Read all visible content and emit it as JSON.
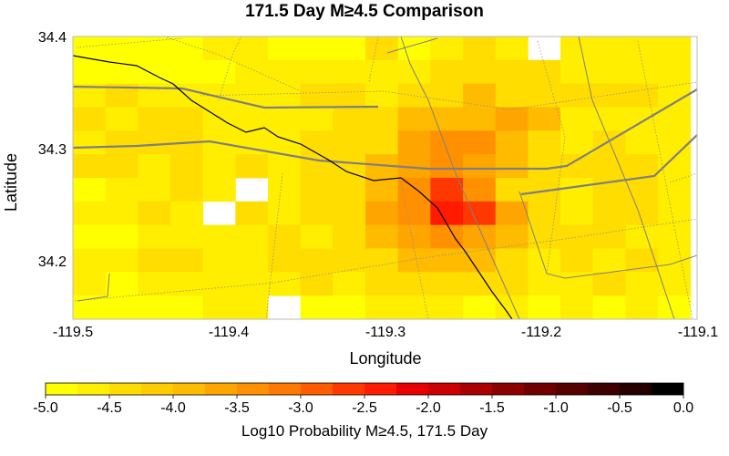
{
  "title": "171.5 Day M≥4.5 Comparison",
  "map": {
    "x_label": "Longitude",
    "y_label": "Latitude",
    "lon_range": [
      -119.5,
      -119.1
    ],
    "lat_range": [
      34.145,
      34.4
    ],
    "x_ticks": [
      "-119.5",
      "-119.4",
      "-119.3",
      "-119.2",
      "-119.1"
    ],
    "y_ticks": [
      "34.4",
      "34.3",
      "34.2"
    ],
    "grid_start": [
      -119.5,
      34.145
    ],
    "grid_step_deg": [
      0.02083,
      0.02125
    ],
    "grid_size": [
      19,
      12
    ],
    "cell_values_log10": [
      [
        -5.0,
        -4.9,
        -4.9,
        -4.9,
        -4.7,
        -4.7,
        -5.0,
        -4.9,
        -4.9,
        -4.4,
        -4.9,
        -4.7,
        -4.4,
        -4.6,
        null,
        -4.7,
        -4.6,
        -4.6,
        -4.6
      ],
      [
        -4.9,
        -4.9,
        -4.9,
        -5.0,
        -4.9,
        -4.6,
        -4.7,
        -4.7,
        -4.7,
        -4.6,
        -4.7,
        -4.4,
        -4.3,
        -4.4,
        -4.3,
        -4.7,
        -4.6,
        -4.7,
        -4.6
      ],
      [
        -4.6,
        -4.4,
        -4.7,
        -4.6,
        -4.7,
        -4.6,
        -4.6,
        -4.4,
        -4.4,
        -4.6,
        -4.3,
        -4.4,
        -4.0,
        -4.3,
        -4.4,
        -4.4,
        -4.3,
        -4.4,
        -4.7
      ],
      [
        -4.4,
        -4.7,
        -4.4,
        -4.4,
        -4.6,
        -4.6,
        -4.6,
        -4.6,
        -4.3,
        -4.4,
        -4.0,
        -4.0,
        -4.0,
        -3.7,
        -4.0,
        -4.6,
        -4.7,
        -4.6,
        -4.7
      ],
      [
        -4.6,
        -4.4,
        -4.3,
        -4.4,
        -4.6,
        -4.6,
        -4.7,
        -4.4,
        -4.3,
        -4.3,
        -3.7,
        -3.5,
        -3.5,
        -4.0,
        -4.3,
        -4.6,
        -4.4,
        -4.6,
        -4.6
      ],
      [
        -4.4,
        -4.4,
        -4.6,
        -4.4,
        -4.7,
        -4.3,
        -4.6,
        -4.3,
        -4.3,
        -4.0,
        -3.7,
        -3.5,
        -3.7,
        -4.0,
        -4.3,
        -4.4,
        -4.3,
        -4.4,
        -4.6
      ],
      [
        -4.9,
        -4.6,
        -4.6,
        -4.4,
        -4.6,
        null,
        -4.7,
        -4.4,
        -4.3,
        -4.0,
        -3.5,
        -2.7,
        -3.3,
        -4.3,
        -4.4,
        -4.6,
        -4.4,
        -4.3,
        -4.6
      ],
      [
        -4.7,
        -4.6,
        -4.4,
        -4.6,
        null,
        -4.4,
        -4.6,
        -4.4,
        -4.3,
        -3.7,
        -3.3,
        -2.5,
        -2.7,
        -3.7,
        -4.4,
        -4.6,
        -4.3,
        -4.4,
        -4.7
      ],
      [
        -4.9,
        -4.9,
        -4.7,
        -4.6,
        -4.7,
        -4.6,
        -4.4,
        -4.6,
        -4.3,
        -4.0,
        -3.7,
        -3.5,
        -3.7,
        -4.0,
        -4.4,
        -4.4,
        -4.4,
        -4.6,
        -4.7
      ],
      [
        -4.7,
        -4.6,
        -4.4,
        -4.3,
        -4.6,
        -4.6,
        -4.4,
        -4.4,
        -4.4,
        -4.3,
        -4.0,
        -4.0,
        -4.0,
        -4.3,
        -4.6,
        -4.4,
        -4.6,
        -4.4,
        -4.6
      ],
      [
        -4.7,
        -4.9,
        -4.6,
        -4.6,
        -4.6,
        -4.7,
        -4.7,
        -4.4,
        -4.6,
        -4.4,
        -4.3,
        -4.3,
        -4.3,
        -4.4,
        -4.7,
        -4.6,
        -4.4,
        -4.6,
        -4.7
      ],
      [
        -4.9,
        -4.9,
        -4.9,
        -4.9,
        -4.7,
        -4.7,
        null,
        -4.9,
        -4.9,
        -4.6,
        -4.6,
        -4.6,
        -4.9,
        -4.6,
        -4.9,
        -4.7,
        -4.9,
        -4.7,
        -4.9
      ]
    ]
  },
  "colorbar": {
    "label": "Log10 Probability M≥4.5, 171.5 Day",
    "ticks": [
      "-5.0",
      "-4.5",
      "-4.0",
      "-3.5",
      "-3.0",
      "-2.5",
      "-2.0",
      "-1.5",
      "-1.0",
      "-0.5",
      "0.0"
    ],
    "range": [
      -5.0,
      0.0
    ],
    "colors": [
      "#ffff00",
      "#ffee00",
      "#ffdd00",
      "#ffcc00",
      "#ffbb00",
      "#ffa500",
      "#ff9000",
      "#ff7800",
      "#ff5c00",
      "#ff3800",
      "#ff1a00",
      "#e80000",
      "#cc0000",
      "#aa0000",
      "#8c0000",
      "#700000",
      "#560000",
      "#3e0000",
      "#260000",
      "#000000"
    ]
  },
  "colors": {
    "fault": "#808080",
    "coast": "#000000",
    "minor_fault": "#909090",
    "axis": "#000000"
  }
}
